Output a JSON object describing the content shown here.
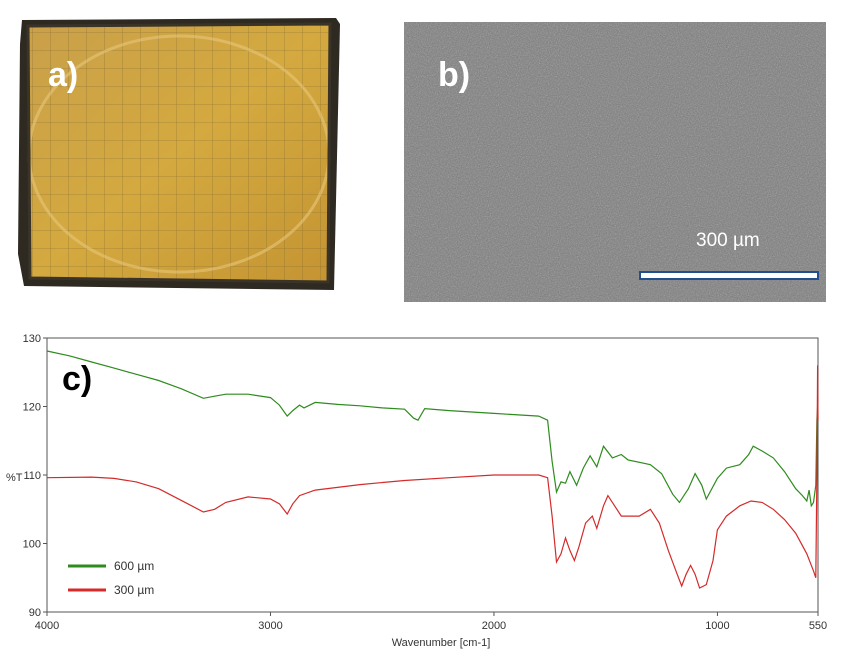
{
  "panels": {
    "a": {
      "label": "a)"
    },
    "b": {
      "label": "b)",
      "scale_bar_label": "300 µm"
    },
    "c": {
      "label": "c)"
    }
  },
  "chart_data": {
    "type": "line",
    "title": "",
    "xlabel": "Wavenumber [cm-1]",
    "ylabel": "%T",
    "xlim": [
      4000,
      550
    ],
    "ylim": [
      90,
      130
    ],
    "x_ticks": [
      "4000",
      "3000",
      "2000",
      "1000",
      "550"
    ],
    "y_ticks": [
      "130",
      "120",
      "110",
      "100",
      "90"
    ],
    "legend_position": "bottom-left",
    "series": [
      {
        "name": "600 µm",
        "color": "#2e8b1e",
        "points": [
          [
            4000,
            128.1
          ],
          [
            3900,
            127.4
          ],
          [
            3800,
            126.5
          ],
          [
            3700,
            125.6
          ],
          [
            3600,
            124.7
          ],
          [
            3500,
            123.8
          ],
          [
            3400,
            122.6
          ],
          [
            3300,
            121.2
          ],
          [
            3250,
            121.5
          ],
          [
            3200,
            121.8
          ],
          [
            3100,
            121.8
          ],
          [
            3000,
            121.3
          ],
          [
            2960,
            120.2
          ],
          [
            2925,
            118.6
          ],
          [
            2900,
            119.4
          ],
          [
            2870,
            120.2
          ],
          [
            2850,
            119.8
          ],
          [
            2800,
            120.6
          ],
          [
            2700,
            120.3
          ],
          [
            2600,
            120.1
          ],
          [
            2500,
            119.8
          ],
          [
            2400,
            119.6
          ],
          [
            2360,
            118.3
          ],
          [
            2340,
            118.0
          ],
          [
            2310,
            119.7
          ],
          [
            2200,
            119.4
          ],
          [
            2000,
            119.0
          ],
          [
            1800,
            118.6
          ],
          [
            1760,
            118.0
          ],
          [
            1740,
            112.0
          ],
          [
            1720,
            107.5
          ],
          [
            1700,
            109.0
          ],
          [
            1680,
            108.8
          ],
          [
            1660,
            110.5
          ],
          [
            1630,
            108.5
          ],
          [
            1600,
            111.0
          ],
          [
            1570,
            112.8
          ],
          [
            1540,
            111.2
          ],
          [
            1510,
            114.2
          ],
          [
            1470,
            112.5
          ],
          [
            1430,
            113.0
          ],
          [
            1400,
            112.2
          ],
          [
            1300,
            111.5
          ],
          [
            1250,
            110.2
          ],
          [
            1200,
            107.2
          ],
          [
            1170,
            106.0
          ],
          [
            1130,
            108.0
          ],
          [
            1100,
            110.2
          ],
          [
            1070,
            108.5
          ],
          [
            1050,
            106.5
          ],
          [
            1000,
            109.5
          ],
          [
            960,
            111.0
          ],
          [
            900,
            111.5
          ],
          [
            860,
            113.0
          ],
          [
            840,
            114.2
          ],
          [
            800,
            113.5
          ],
          [
            750,
            112.5
          ],
          [
            700,
            110.5
          ],
          [
            650,
            108.0
          ],
          [
            620,
            107.0
          ],
          [
            600,
            106.2
          ],
          [
            590,
            107.8
          ],
          [
            580,
            105.5
          ],
          [
            570,
            106.0
          ],
          [
            560,
            108.5
          ],
          [
            555,
            118.0
          ],
          [
            550,
            121.0
          ]
        ]
      },
      {
        "name": "300 µm",
        "color": "#d42a2a",
        "points": [
          [
            4000,
            109.6
          ],
          [
            3800,
            109.7
          ],
          [
            3700,
            109.5
          ],
          [
            3600,
            109.0
          ],
          [
            3500,
            108.0
          ],
          [
            3400,
            106.3
          ],
          [
            3300,
            104.6
          ],
          [
            3250,
            105.0
          ],
          [
            3200,
            106.0
          ],
          [
            3100,
            106.8
          ],
          [
            3000,
            106.5
          ],
          [
            2960,
            105.8
          ],
          [
            2925,
            104.3
          ],
          [
            2900,
            105.8
          ],
          [
            2870,
            107.0
          ],
          [
            2800,
            107.8
          ],
          [
            2600,
            108.6
          ],
          [
            2400,
            109.2
          ],
          [
            2200,
            109.6
          ],
          [
            2000,
            110.0
          ],
          [
            1800,
            110.0
          ],
          [
            1760,
            109.6
          ],
          [
            1740,
            104.0
          ],
          [
            1720,
            97.3
          ],
          [
            1700,
            98.5
          ],
          [
            1680,
            100.8
          ],
          [
            1660,
            99.0
          ],
          [
            1640,
            97.5
          ],
          [
            1620,
            99.5
          ],
          [
            1590,
            103.0
          ],
          [
            1560,
            104.0
          ],
          [
            1540,
            102.2
          ],
          [
            1510,
            105.5
          ],
          [
            1490,
            107.0
          ],
          [
            1460,
            105.5
          ],
          [
            1430,
            104.0
          ],
          [
            1350,
            104.0
          ],
          [
            1300,
            105.0
          ],
          [
            1260,
            103.0
          ],
          [
            1220,
            99.0
          ],
          [
            1180,
            95.5
          ],
          [
            1160,
            93.8
          ],
          [
            1140,
            95.5
          ],
          [
            1120,
            96.8
          ],
          [
            1100,
            95.5
          ],
          [
            1080,
            93.5
          ],
          [
            1050,
            94.0
          ],
          [
            1020,
            97.5
          ],
          [
            1000,
            102.0
          ],
          [
            960,
            104.0
          ],
          [
            900,
            105.5
          ],
          [
            850,
            106.2
          ],
          [
            800,
            106.0
          ],
          [
            750,
            105.0
          ],
          [
            700,
            103.5
          ],
          [
            650,
            101.5
          ],
          [
            600,
            98.5
          ],
          [
            570,
            96.0
          ],
          [
            560,
            95.0
          ],
          [
            555,
            110.0
          ],
          [
            552,
            126.0
          ],
          [
            550,
            118.0
          ]
        ]
      }
    ]
  }
}
